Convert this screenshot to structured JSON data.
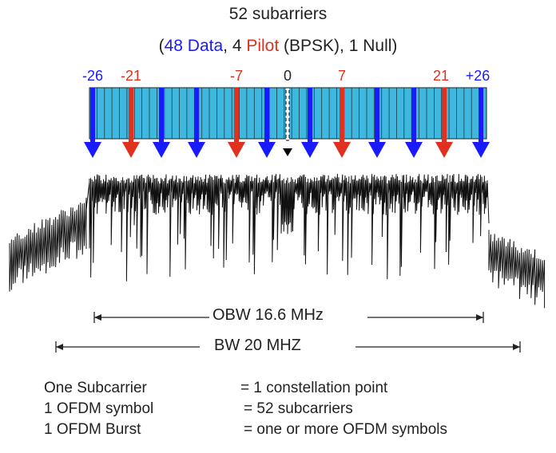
{
  "title": "52 subarriers",
  "subtitle": {
    "open": "(",
    "data_count": "48",
    "data_word": "Data",
    "sep1": ", 4 ",
    "pilot_word": "Pilot",
    "rest": " (BPSK), 1 Null)"
  },
  "colors": {
    "data": "#1a1aff",
    "pilot": "#e0301e",
    "null": "#000000",
    "cells": "#3fb8e0",
    "text": "#222222"
  },
  "carrier_labels": [
    {
      "text": "-26",
      "type": "data"
    },
    {
      "text": "-21",
      "type": "pilot"
    },
    {
      "text": "-7",
      "type": "pilot"
    },
    {
      "text": "0",
      "type": "null"
    },
    {
      "text": "7",
      "type": "pilot"
    },
    {
      "text": "21",
      "type": "pilot"
    },
    {
      "text": "+26",
      "type": "data"
    }
  ],
  "arrows": [
    "data",
    "pilot",
    "data",
    "data",
    "pilot",
    "data",
    "null",
    "data",
    "pilot",
    "data",
    "data",
    "pilot",
    "data"
  ],
  "obw_label": "OBW 16.6 MHz",
  "bw_label": "BW 20 MHZ",
  "legend": [
    {
      "term": "One Subcarrier",
      "value": "= 1 constellation point"
    },
    {
      "term": "1 OFDM symbol",
      "value": "= 52 subcarriers"
    },
    {
      "term": "1 OFDM Burst",
      "value": "= one or more OFDM symbols"
    }
  ]
}
